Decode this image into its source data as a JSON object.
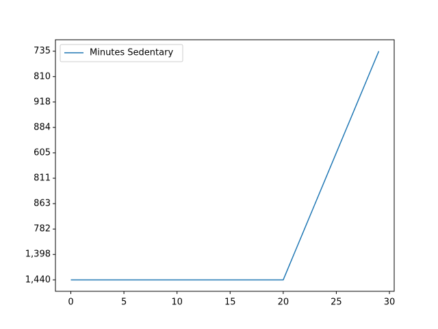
{
  "chart_data": {
    "type": "line",
    "y_scale": "category",
    "x": [
      0,
      1,
      2,
      3,
      4,
      5,
      6,
      7,
      8,
      9,
      10,
      11,
      12,
      13,
      14,
      15,
      16,
      17,
      18,
      19,
      20,
      21,
      22,
      23,
      24,
      25,
      26,
      27,
      28,
      29
    ],
    "series": [
      {
        "name": "Minutes Sedentary",
        "color": "#1f77b4",
        "values": [
          1440,
          1440,
          1440,
          1440,
          1440,
          1440,
          1440,
          1440,
          1440,
          1440,
          1440,
          1440,
          1440,
          1440,
          1440,
          1440,
          1440,
          1440,
          1440,
          1440,
          1440,
          1398,
          782,
          863,
          811,
          605,
          884,
          918,
          810,
          735
        ]
      }
    ],
    "xlim": [
      -1.45,
      30.45
    ],
    "xticks": [
      0,
      5,
      10,
      15,
      20,
      25,
      30
    ],
    "ylim": [
      -0.45,
      9.45
    ],
    "yticks": [
      {
        "value": 1440,
        "label": "1,440"
      },
      {
        "value": 1398,
        "label": "1,398"
      },
      782,
      863,
      811,
      605,
      884,
      918,
      810,
      735
    ],
    "legend": "upper left"
  }
}
